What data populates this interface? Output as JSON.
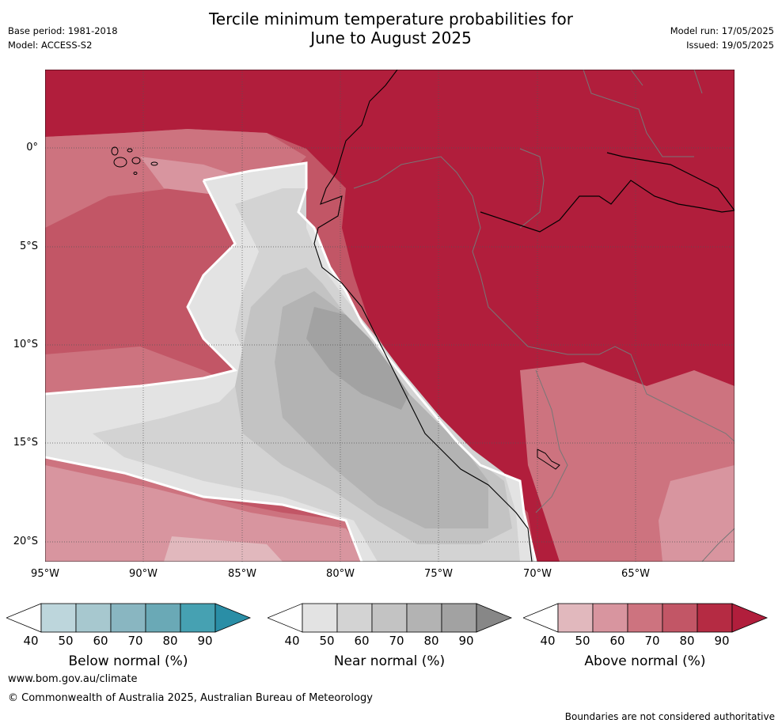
{
  "header": {
    "title_line1": "Tercile minimum temperature probabilities for",
    "title_line2": "June to August 2025",
    "base_period": "Base period: 1981-2018",
    "model": "Model: ACCESS-S2",
    "model_run": "Model run: 17/05/2025",
    "issued": "Issued: 19/05/2025"
  },
  "map": {
    "lat_labels": [
      "0°",
      "5°S",
      "10°S",
      "15°S",
      "20°S"
    ],
    "lon_labels": [
      "95°W",
      "90°W",
      "85°W",
      "80°W",
      "75°W",
      "70°W",
      "65°W"
    ]
  },
  "colorbars": [
    {
      "label": "Below normal (%)",
      "ticks": [
        "40",
        "50",
        "60",
        "70",
        "80",
        "90"
      ],
      "colors": [
        "#ffffff",
        "#bdd6dc",
        "#a7c8cf",
        "#89b6c1",
        "#6aa9b6",
        "#46a1b2",
        "#2a8ea6"
      ]
    },
    {
      "label": "Near normal (%)",
      "ticks": [
        "40",
        "50",
        "60",
        "70",
        "80",
        "90"
      ],
      "colors": [
        "#ffffff",
        "#e3e3e3",
        "#d3d3d3",
        "#c3c3c3",
        "#b3b3b3",
        "#a2a2a2",
        "#878787"
      ]
    },
    {
      "label": "Above normal (%)",
      "ticks": [
        "40",
        "50",
        "60",
        "70",
        "80",
        "90"
      ],
      "colors": [
        "#ffffff",
        "#e1b8bd",
        "#d8959f",
        "#cd737f",
        "#c25666",
        "#b52b43",
        "#b11e3c"
      ]
    }
  ],
  "footer": {
    "website": "www.bom.gov.au/climate",
    "copyright": "© Commonwealth of Australia 2025, Australian Bureau of Meteorology",
    "disclaimer": "Boundaries are not considered authoritative"
  }
}
